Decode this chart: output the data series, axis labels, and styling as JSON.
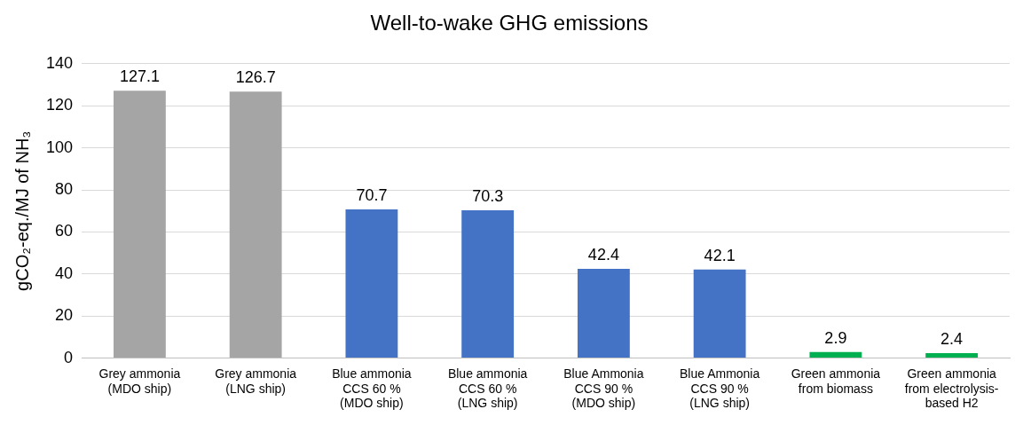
{
  "chart_data": {
    "type": "bar",
    "title": "Well-to-wake GHG emissions",
    "ylabel": "gCO₂-eq./MJ of NH₃",
    "categories": [
      "Grey ammonia\n(MDO ship)",
      "Grey ammonia\n(LNG ship)",
      "Blue ammonia\nCCS 60 %\n(MDO ship)",
      "Blue ammonia\nCCS 60 %\n(LNG ship)",
      "Blue Ammonia\nCCS 90 %\n(MDO ship)",
      "Blue Ammonia\nCCS 90 %\n(LNG ship)",
      "Green ammonia\nfrom biomass",
      "Green ammonia\nfrom electrolysis-\nbased H2"
    ],
    "values": [
      127.1,
      126.7,
      70.7,
      70.3,
      42.4,
      42.1,
      2.9,
      2.4
    ],
    "colors": [
      "#a5a5a5",
      "#a5a5a5",
      "#4472c4",
      "#4472c4",
      "#4472c4",
      "#4472c4",
      "#00b050",
      "#00b050"
    ],
    "ylim": [
      0,
      140
    ],
    "yticks": [
      0,
      20,
      40,
      60,
      80,
      100,
      120,
      140
    ],
    "grid": "y",
    "data_labels": true,
    "legend": false
  }
}
